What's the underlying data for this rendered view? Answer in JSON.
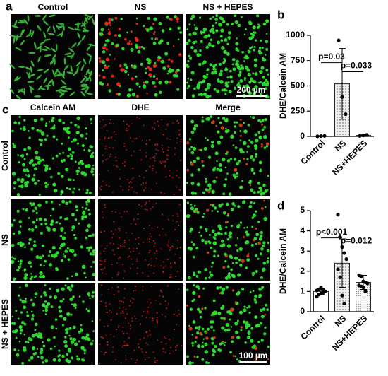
{
  "panel_labels": [
    "a",
    "b",
    "c",
    "d"
  ],
  "panel_a": {
    "columns": [
      "Control",
      "NS",
      "NS + HEPES"
    ],
    "scale_bar": "200 µm"
  },
  "panel_c": {
    "columns": [
      "Calcein AM",
      "DHE",
      "Merge"
    ],
    "rows": [
      "Control",
      "NS",
      "NS + HEPES"
    ],
    "scale_bar": "100 µm"
  },
  "chart_data": [
    {
      "type": "bar",
      "y_label": "DHE/Calcein AM",
      "categories": [
        "Control",
        "NS",
        "NS+HEPES"
      ],
      "values": [
        3,
        520,
        10
      ],
      "errors": [
        3,
        350,
        6
      ],
      "points": [
        [
          1,
          3,
          5
        ],
        [
          950,
          390,
          220
        ],
        [
          5,
          10,
          15
        ]
      ],
      "colors": [
        "#ffffff",
        "#d0d0d0",
        "#e8e8e8"
      ],
      "ylim": [
        0,
        1000
      ],
      "yticks": [
        0,
        250,
        500,
        750,
        1000
      ],
      "annotations": [
        "p=0.03",
        "p=0.033"
      ]
    },
    {
      "type": "bar",
      "y_label": "DHE/Calcein AM",
      "categories": [
        "Control",
        "NS",
        "NS+HEPES"
      ],
      "values": [
        1.0,
        2.4,
        1.45
      ],
      "errors": [
        0.15,
        1.2,
        0.35
      ],
      "points": [
        [
          0.75,
          0.85,
          0.9,
          0.95,
          1.0,
          1.05,
          1.1,
          1.2,
          1.1
        ],
        [
          4.8,
          3.7,
          3.2,
          2.9,
          2.6,
          2.1,
          1.7,
          0.8,
          0.4
        ],
        [
          1.8,
          1.75,
          1.5,
          1.45,
          1.4,
          1.3,
          1.25,
          1.2,
          1.0
        ]
      ],
      "colors": [
        "#ffffff",
        "#d0d0d0",
        "#e8e8e8"
      ],
      "ylim": [
        0,
        5
      ],
      "yticks": [
        0,
        1,
        2,
        3,
        4,
        5
      ],
      "annotations": [
        "p<0.001",
        "p=0.012"
      ]
    }
  ]
}
